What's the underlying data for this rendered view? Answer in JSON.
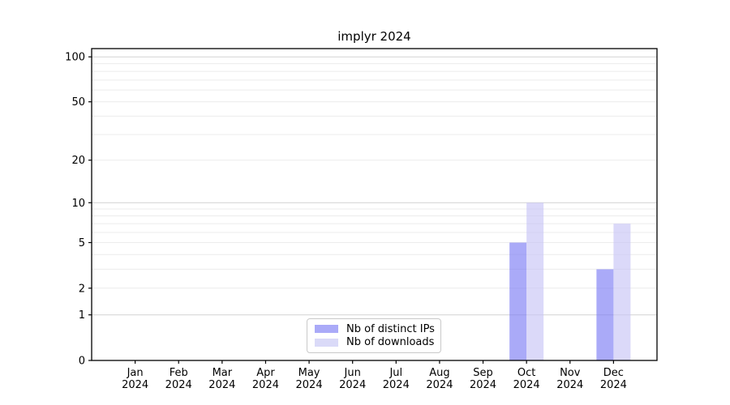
{
  "chart_data": {
    "type": "bar",
    "title": "implyr 2024",
    "categories": [
      "Jan",
      "Feb",
      "Mar",
      "Apr",
      "May",
      "Jun",
      "Jul",
      "Aug",
      "Sep",
      "Oct",
      "Nov",
      "Dec"
    ],
    "x_year_label": "2024",
    "series": [
      {
        "name": "Nb of distinct IPs",
        "color": "#aaaaf8",
        "fill_rgba": "rgba(125,124,245,0.65)",
        "values": [
          0,
          0,
          0,
          0,
          0,
          0,
          0,
          0,
          0,
          5,
          0,
          3
        ]
      },
      {
        "name": "Nb of downloads",
        "color": "#dadaf8",
        "fill_rgba": "rgba(199,197,246,0.65)",
        "values": [
          0,
          0,
          0,
          0,
          0,
          0,
          0,
          0,
          0,
          10,
          0,
          7
        ]
      }
    ],
    "yticks": [
      0,
      1,
      2,
      5,
      10,
      20,
      50,
      100
    ],
    "ylim": [
      0,
      113
    ],
    "y_scale": "log1p",
    "grid": "horizontal",
    "grid_minor_values": [
      2,
      3,
      4,
      5,
      6,
      7,
      8,
      9,
      20,
      30,
      40,
      50,
      60,
      70,
      80,
      90
    ],
    "grid_major_values": [
      1,
      10,
      100
    ],
    "legend_position": "lower center",
    "xlabel": "",
    "ylabel": ""
  },
  "colors": {
    "background": "#ffffff",
    "frame": "#000000",
    "grid_minor": "#ececec",
    "grid_major": "#d2d2d2",
    "tick_text": "#000000",
    "legend_border": "#c9c9c9"
  }
}
